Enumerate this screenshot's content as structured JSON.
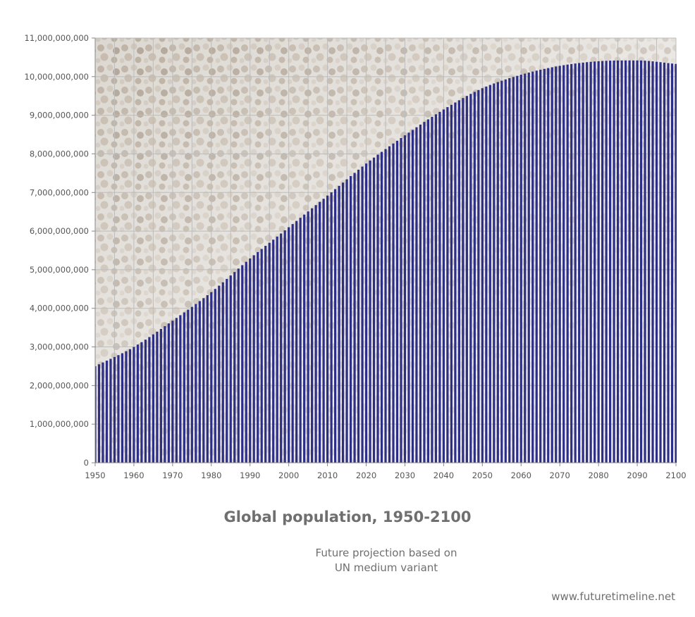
{
  "chart_data": {
    "type": "bar",
    "title": "Global population, 1950-2100",
    "subtitle": "Future projection based on\nUN medium variant",
    "source": "www.futuretimeline.net",
    "xlabel": "",
    "ylabel": "",
    "x_range": [
      1950,
      2100
    ],
    "ylim": [
      0,
      11000000000
    ],
    "x_ticks": [
      "1950",
      "1960",
      "1970",
      "1980",
      "1990",
      "2000",
      "2010",
      "2020",
      "2030",
      "2040",
      "2050",
      "2060",
      "2070",
      "2080",
      "2090",
      "2100"
    ],
    "y_ticks": [
      "0",
      "1,000,000,000",
      "2,000,000,000",
      "3,000,000,000",
      "4,000,000,000",
      "5,000,000,000",
      "6,000,000,000",
      "7,000,000,000",
      "8,000,000,000",
      "9,000,000,000",
      "10,000,000,000",
      "11,000,000,000"
    ],
    "grid": true,
    "background": "crowd photograph (faded)",
    "colors": {
      "bar": "#2d2f86",
      "bar_gap": "#ffffff",
      "grid": "#bdbdbd",
      "axis": "#888888",
      "text": "#6f6f6f"
    },
    "series": [
      {
        "values_by_decade": {
          "1950": 2500000000,
          "1960": 3000000000,
          "1970": 3680000000,
          "1980": 4420000000,
          "1990": 5290000000,
          "2000": 6100000000,
          "2010": 6920000000,
          "2020": 7750000000,
          "2030": 8480000000,
          "2040": 9150000000,
          "2050": 9700000000,
          "2060": 10050000000,
          "2070": 10280000000,
          "2080": 10400000000,
          "2090": 10420000000,
          "2100": 10330000000
        }
      }
    ]
  }
}
